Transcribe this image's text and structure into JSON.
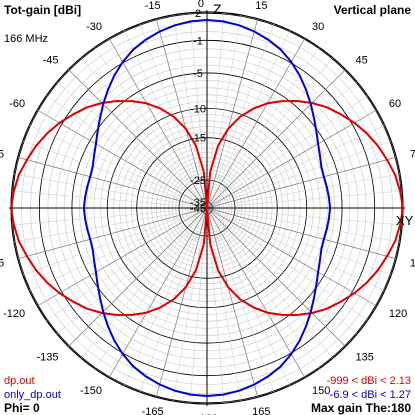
{
  "header": {
    "title": "Tot-gain [dBi]",
    "plane": "Vertical plane",
    "frequency": "166 MHz"
  },
  "footer": {
    "phi": "Phi= 0",
    "max_gain": "Max gain The:180"
  },
  "legend": [
    {
      "file": "dp.out",
      "range": "-999 < dBi < 2.13",
      "color": "#e00000"
    },
    {
      "file": "only_dp.out",
      "range": "-6.9 < dBi < 1.27",
      "color": "#0000cc"
    }
  ],
  "chart_data": {
    "type": "polar",
    "angle_labels": [
      "0",
      "-15",
      "-30",
      "-45",
      "-60",
      "-75",
      "-90",
      "-105",
      "-120",
      "-135",
      "-150",
      "-165",
      "-180",
      "165",
      "150",
      "135",
      "120",
      "105",
      "90",
      "75",
      "60",
      "45",
      "30",
      "15"
    ],
    "axis_letters": {
      "top": "Z",
      "right": "XY"
    },
    "radial_ticks": [
      "2",
      "-1",
      "-5",
      "-10",
      "-15",
      "-25",
      "-35",
      "-45"
    ],
    "radial_tick_values_db": [
      2,
      -1,
      -5,
      -10,
      -15,
      -25,
      -35,
      -45
    ],
    "radial_range_db": [
      -45,
      2.13
    ],
    "grid": true,
    "series": [
      {
        "name": "dp.out",
        "color": "#e00000",
        "angles_deg": [
          0,
          5,
          10,
          15,
          20,
          25,
          30,
          35,
          40,
          45,
          50,
          55,
          60,
          65,
          70,
          75,
          80,
          85,
          90
        ],
        "gain_dbi": [
          -999,
          -22.6,
          -16.4,
          -12.9,
          -10.4,
          -8.5,
          -6.9,
          -5.6,
          -4.4,
          -3.3,
          -2.3,
          -1.5,
          -0.7,
          0.0,
          0.6,
          1.1,
          1.6,
          1.9,
          2.13
        ]
      },
      {
        "name": "only_dp.out",
        "color": "#0000cc",
        "angles_deg": [
          0,
          5,
          10,
          15,
          20,
          25,
          30,
          35,
          40,
          45,
          50,
          55,
          60,
          65,
          70,
          75,
          80,
          85,
          90
        ],
        "gain_dbi": [
          1.27,
          1.2,
          1.0,
          0.7,
          0.3,
          -0.2,
          -0.9,
          -1.7,
          -2.6,
          -3.5,
          -4.4,
          -5.2,
          -5.9,
          -6.4,
          -6.8,
          -6.9,
          -6.8,
          -6.7,
          -6.6
        ]
      }
    ]
  }
}
